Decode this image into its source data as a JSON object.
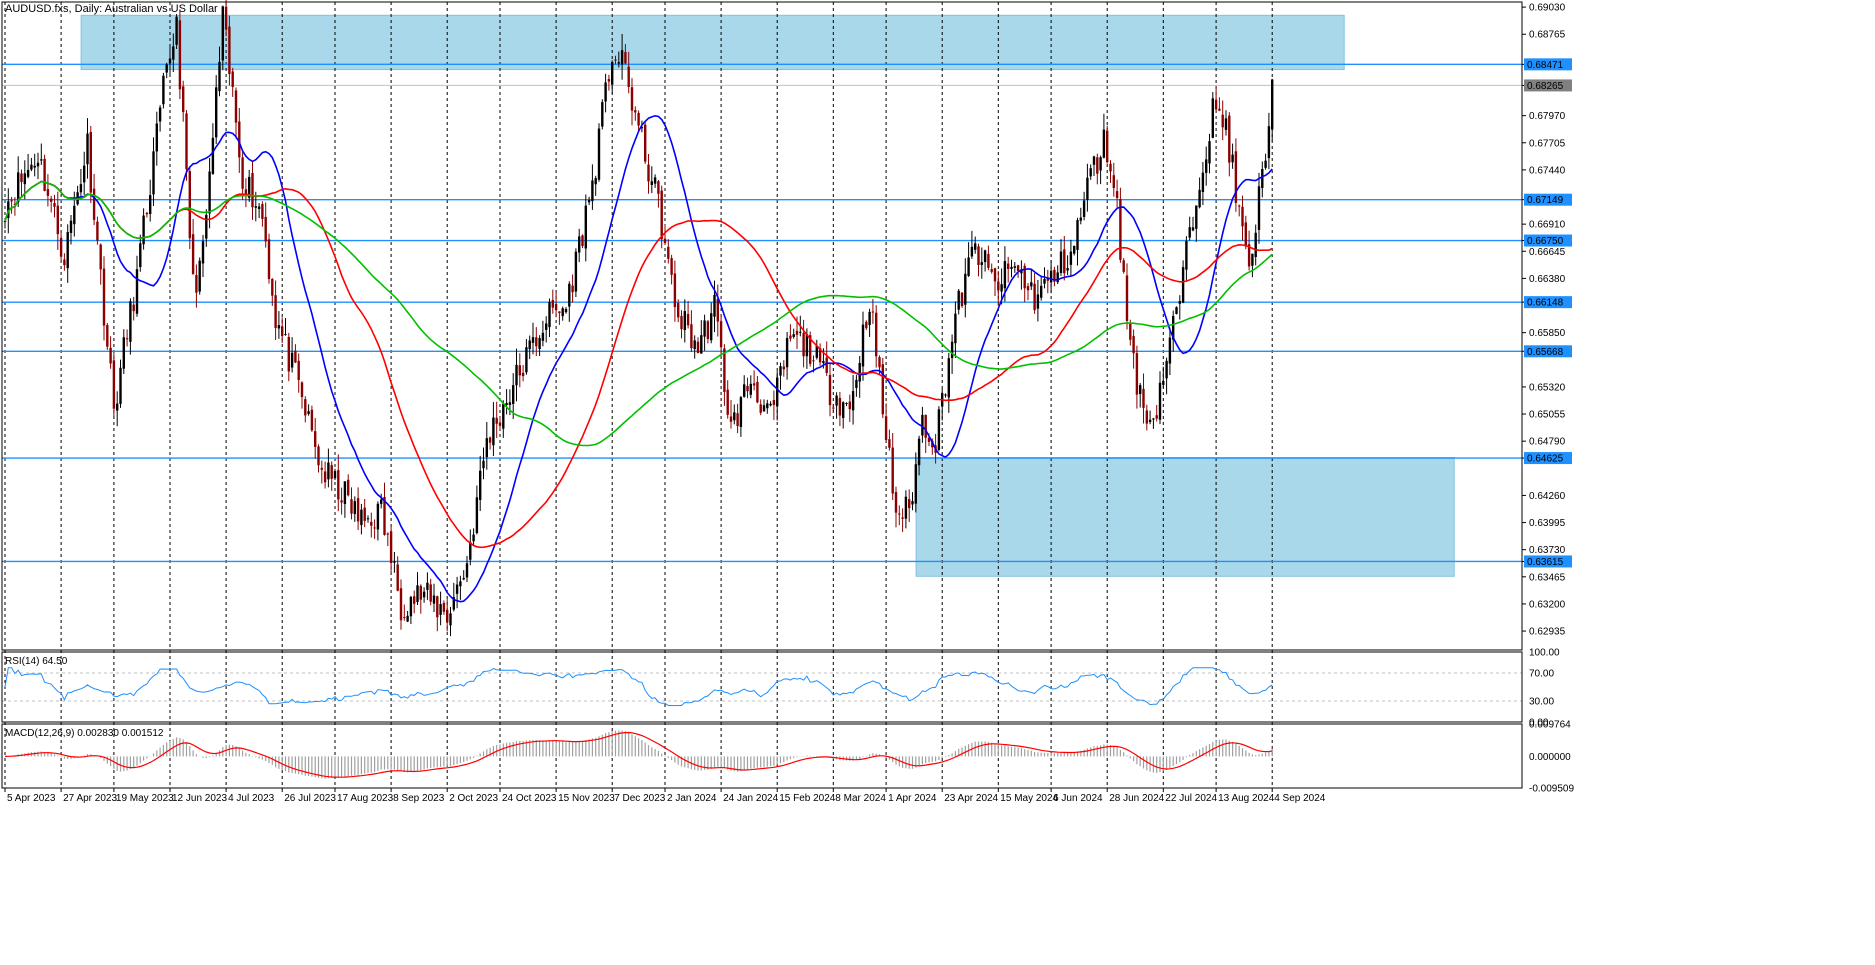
{
  "title": "AUDUSD.fxs, Daily:  Australian vs US Dollar",
  "rsi_label": "RSI(14) 64.50",
  "macd_label": "MACD(12,26,9) 0.002830 0.001512",
  "colors": {
    "candle_up": "#000000",
    "candle_down": "#8b0000",
    "ma_fast": "#0000ff",
    "ma_mid": "#ff0000",
    "ma_slow": "#00c000",
    "level_line": "#1e90ff",
    "zone": "#a8d8ea",
    "rsi": "#1e90ff",
    "macd_signal": "#ff0000",
    "macd_hist": "#a0a0a0",
    "tag": "#1e90ff",
    "current_tag": "#808080"
  },
  "chart_data": {
    "type": "candlestick",
    "price_axis": {
      "ticks": [
        "0.69030",
        "0.68765",
        "0.68471",
        "0.68265",
        "0.67970",
        "0.67705",
        "0.67440",
        "0.67149",
        "0.66910",
        "0.66750",
        "0.66645",
        "0.66380",
        "0.66148",
        "0.65850",
        "0.65668",
        "0.65320",
        "0.65055",
        "0.64790",
        "0.64625",
        "0.64260",
        "0.63995",
        "0.63730",
        "0.63615",
        "0.63465",
        "0.63200",
        "0.62935"
      ],
      "range": [
        0.6275,
        0.6908
      ]
    },
    "x_labels": [
      "5 Apr 2023",
      "27 Apr 2023",
      "19 May 2023",
      "12 Jun 2023",
      "4 Jul 2023",
      "26 Jul 2023",
      "17 Aug 2023",
      "8 Sep 2023",
      "2 Oct 2023",
      "24 Oct 2023",
      "15 Nov 2023",
      "7 Dec 2023",
      "2 Jan 2024",
      "24 Jan 2024",
      "15 Feb 2024",
      "8 Mar 2024",
      "1 Apr 2024",
      "23 Apr 2024",
      "15 May 2024",
      "6 Jun 2024",
      "28 Jun 2024",
      "22 Jul 2024",
      "13 Aug 2024",
      "4 Sep 2024"
    ],
    "levels": [
      {
        "value": 0.68471,
        "label": "0.68471"
      },
      {
        "value": 0.67149,
        "label": "0.67149"
      },
      {
        "value": 0.6675,
        "label": "0.66750"
      },
      {
        "value": 0.66148,
        "label": "0.66148"
      },
      {
        "value": 0.65668,
        "label": "0.65668"
      },
      {
        "value": 0.64625,
        "label": "0.64625"
      },
      {
        "value": 0.63615,
        "label": "0.63615"
      }
    ],
    "current_price": {
      "value": 0.68265,
      "label": "0.68265"
    },
    "zones": [
      {
        "from_date": "27 Apr 2023",
        "to_date": "4 Sep 2024",
        "high": 0.6895,
        "low": 0.6842
      },
      {
        "from_date": "1 Apr 2024",
        "to_date": "4 Sep 2024",
        "high": 0.6463,
        "low": 0.6347
      }
    ],
    "anchors": [
      {
        "i": 0,
        "p": 0.671
      },
      {
        "i": 10,
        "p": 0.676
      },
      {
        "i": 18,
        "p": 0.666
      },
      {
        "i": 25,
        "p": 0.677
      },
      {
        "i": 33,
        "p": 0.651
      },
      {
        "i": 40,
        "p": 0.664
      },
      {
        "i": 48,
        "p": 0.682
      },
      {
        "i": 52,
        "p": 0.689
      },
      {
        "i": 57,
        "p": 0.663
      },
      {
        "i": 60,
        "p": 0.666
      },
      {
        "i": 66,
        "p": 0.689
      },
      {
        "i": 72,
        "p": 0.674
      },
      {
        "i": 78,
        "p": 0.67
      },
      {
        "i": 82,
        "p": 0.66
      },
      {
        "i": 90,
        "p": 0.652
      },
      {
        "i": 96,
        "p": 0.645
      },
      {
        "i": 102,
        "p": 0.643
      },
      {
        "i": 108,
        "p": 0.64
      },
      {
        "i": 114,
        "p": 0.641
      },
      {
        "i": 120,
        "p": 0.632
      },
      {
        "i": 126,
        "p": 0.633
      },
      {
        "i": 134,
        "p": 0.631
      },
      {
        "i": 140,
        "p": 0.636
      },
      {
        "i": 146,
        "p": 0.648
      },
      {
        "i": 152,
        "p": 0.652
      },
      {
        "i": 158,
        "p": 0.656
      },
      {
        "i": 164,
        "p": 0.66
      },
      {
        "i": 170,
        "p": 0.661
      },
      {
        "i": 178,
        "p": 0.673
      },
      {
        "i": 184,
        "p": 0.686
      },
      {
        "i": 188,
        "p": 0.684
      },
      {
        "i": 193,
        "p": 0.677
      },
      {
        "i": 198,
        "p": 0.671
      },
      {
        "i": 203,
        "p": 0.661
      },
      {
        "i": 210,
        "p": 0.657
      },
      {
        "i": 215,
        "p": 0.661
      },
      {
        "i": 220,
        "p": 0.649
      },
      {
        "i": 226,
        "p": 0.654
      },
      {
        "i": 232,
        "p": 0.65
      },
      {
        "i": 238,
        "p": 0.658
      },
      {
        "i": 244,
        "p": 0.657
      },
      {
        "i": 250,
        "p": 0.653
      },
      {
        "i": 256,
        "p": 0.651
      },
      {
        "i": 262,
        "p": 0.662
      },
      {
        "i": 266,
        "p": 0.651
      },
      {
        "i": 270,
        "p": 0.641
      },
      {
        "i": 274,
        "p": 0.641
      },
      {
        "i": 278,
        "p": 0.65
      },
      {
        "i": 282,
        "p": 0.648
      },
      {
        "i": 288,
        "p": 0.66
      },
      {
        "i": 294,
        "p": 0.667
      },
      {
        "i": 300,
        "p": 0.663
      },
      {
        "i": 306,
        "p": 0.665
      },
      {
        "i": 312,
        "p": 0.662
      },
      {
        "i": 318,
        "p": 0.664
      },
      {
        "i": 324,
        "p": 0.667
      },
      {
        "i": 328,
        "p": 0.673
      },
      {
        "i": 333,
        "p": 0.677
      },
      {
        "i": 336,
        "p": 0.674
      },
      {
        "i": 340,
        "p": 0.66
      },
      {
        "i": 344,
        "p": 0.652
      },
      {
        "i": 348,
        "p": 0.65
      },
      {
        "i": 352,
        "p": 0.656
      },
      {
        "i": 356,
        "p": 0.662
      },
      {
        "i": 362,
        "p": 0.674
      },
      {
        "i": 366,
        "p": 0.68
      },
      {
        "i": 370,
        "p": 0.679
      },
      {
        "i": 373,
        "p": 0.672
      },
      {
        "i": 377,
        "p": 0.664
      },
      {
        "i": 381,
        "p": 0.674
      },
      {
        "i": 384,
        "p": 0.682
      }
    ],
    "rsi": {
      "axis_ticks": [
        "100.00",
        "70.00",
        "30.00",
        "0.00"
      ],
      "levels": [
        70,
        30
      ],
      "last": 64.5
    },
    "macd": {
      "axis_ticks": [
        "0.009764",
        "0.000000",
        "-0.009509"
      ],
      "range": [
        -0.009509,
        0.009764
      ],
      "main": 0.00283,
      "signal": 0.001512
    }
  }
}
